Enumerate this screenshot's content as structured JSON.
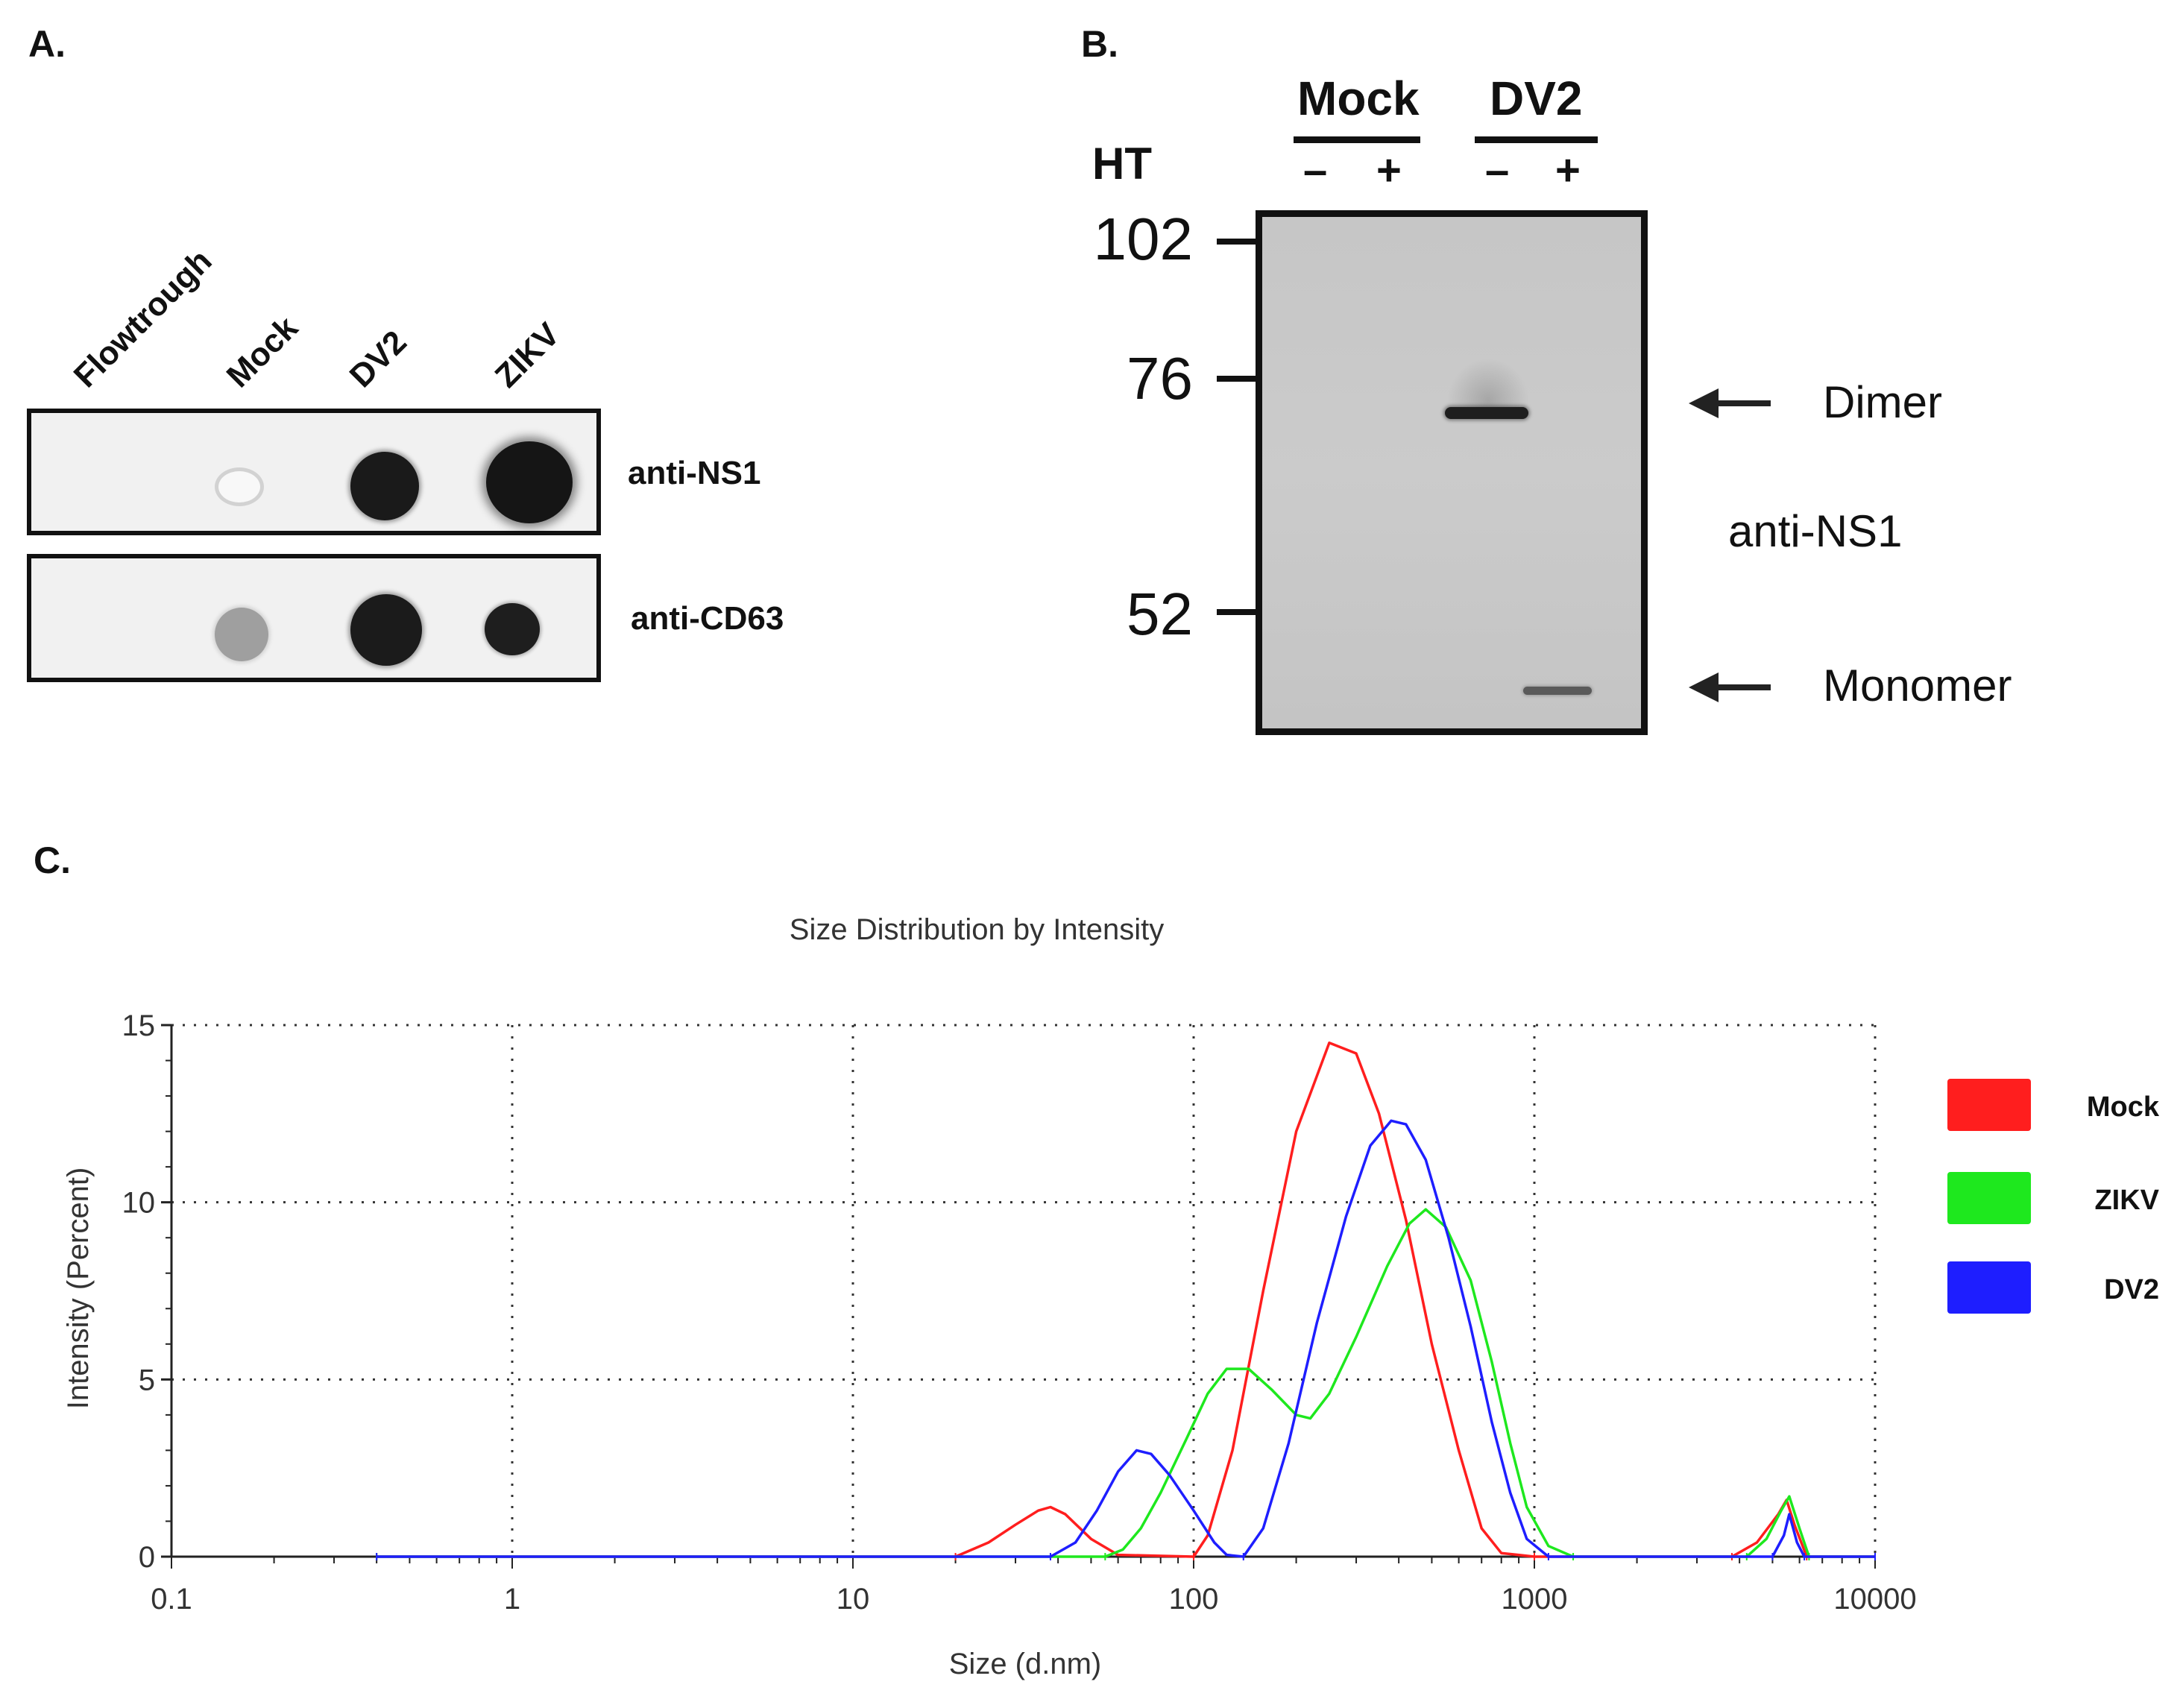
{
  "panel_a": {
    "label": "A.",
    "columns": [
      "Flowtrough",
      "Mock",
      "DV2",
      "ZIKV"
    ],
    "rows": [
      {
        "antibody": "anti-NS1"
      },
      {
        "antibody": "anti-CD63"
      }
    ]
  },
  "panel_b": {
    "label": "B.",
    "groups": [
      "Mock",
      "DV2"
    ],
    "ht_label": "HT",
    "lane_signs": [
      "–",
      "+",
      "–",
      "+"
    ],
    "markers": [
      "102",
      "76",
      "52"
    ],
    "antibody": "anti-NS1",
    "band_labels": [
      "Dimer",
      "Monomer"
    ]
  },
  "panel_c": {
    "label": "C."
  },
  "chart_data": {
    "type": "line",
    "title": "Size Distribution by Intensity",
    "xlabel": "Size (d.nm)",
    "ylabel": "Intensity (Percent)",
    "xscale": "log",
    "xlim": [
      0.1,
      10000
    ],
    "ylim": [
      0,
      15
    ],
    "xticks": [
      "0.1",
      "1",
      "10",
      "100",
      "1000",
      "10000"
    ],
    "yticks": [
      "0",
      "5",
      "10",
      "15"
    ],
    "grid": true,
    "legend_position": "right",
    "series": [
      {
        "name": "Mock",
        "color": "#ff1e1e",
        "points": [
          [
            0.4,
            0
          ],
          [
            20,
            0
          ],
          [
            25,
            0.4
          ],
          [
            30,
            0.9
          ],
          [
            35,
            1.3
          ],
          [
            38,
            1.4
          ],
          [
            42,
            1.2
          ],
          [
            50,
            0.5
          ],
          [
            60,
            0.05
          ],
          [
            100,
            0
          ],
          [
            110,
            0.6
          ],
          [
            130,
            3
          ],
          [
            160,
            7.5
          ],
          [
            200,
            12
          ],
          [
            250,
            14.5
          ],
          [
            300,
            14.2
          ],
          [
            350,
            12.5
          ],
          [
            420,
            9.5
          ],
          [
            500,
            6
          ],
          [
            600,
            3
          ],
          [
            700,
            0.8
          ],
          [
            800,
            0.1
          ],
          [
            1000,
            0
          ],
          [
            3800,
            0
          ],
          [
            4500,
            0.4
          ],
          [
            5200,
            1.2
          ],
          [
            5500,
            1.6
          ],
          [
            5800,
            0.9
          ],
          [
            6300,
            0
          ],
          [
            10000,
            0
          ]
        ]
      },
      {
        "name": "ZIKV",
        "color": "#1ee81e",
        "points": [
          [
            0.4,
            0
          ],
          [
            55,
            0
          ],
          [
            62,
            0.2
          ],
          [
            70,
            0.8
          ],
          [
            80,
            1.8
          ],
          [
            95,
            3.3
          ],
          [
            110,
            4.6
          ],
          [
            125,
            5.3
          ],
          [
            145,
            5.3
          ],
          [
            170,
            4.7
          ],
          [
            200,
            4
          ],
          [
            220,
            3.9
          ],
          [
            250,
            4.6
          ],
          [
            300,
            6.2
          ],
          [
            370,
            8.2
          ],
          [
            430,
            9.4
          ],
          [
            480,
            9.8
          ],
          [
            550,
            9.3
          ],
          [
            650,
            7.8
          ],
          [
            750,
            5.5
          ],
          [
            850,
            3.2
          ],
          [
            950,
            1.4
          ],
          [
            1100,
            0.3
          ],
          [
            1300,
            0
          ],
          [
            4200,
            0
          ],
          [
            4800,
            0.5
          ],
          [
            5300,
            1.3
          ],
          [
            5600,
            1.7
          ],
          [
            6000,
            0.8
          ],
          [
            6400,
            0
          ],
          [
            10000,
            0
          ]
        ]
      },
      {
        "name": "DV2",
        "color": "#1e1eff",
        "points": [
          [
            0.4,
            0
          ],
          [
            38,
            0
          ],
          [
            45,
            0.4
          ],
          [
            52,
            1.3
          ],
          [
            60,
            2.4
          ],
          [
            68,
            3
          ],
          [
            75,
            2.9
          ],
          [
            85,
            2.3
          ],
          [
            100,
            1.3
          ],
          [
            115,
            0.4
          ],
          [
            125,
            0.05
          ],
          [
            140,
            0
          ],
          [
            160,
            0.8
          ],
          [
            190,
            3.2
          ],
          [
            230,
            6.6
          ],
          [
            280,
            9.6
          ],
          [
            330,
            11.6
          ],
          [
            380,
            12.3
          ],
          [
            420,
            12.2
          ],
          [
            480,
            11.2
          ],
          [
            560,
            9
          ],
          [
            650,
            6.5
          ],
          [
            750,
            3.8
          ],
          [
            850,
            1.8
          ],
          [
            950,
            0.5
          ],
          [
            1100,
            0
          ],
          [
            5000,
            0
          ],
          [
            5400,
            0.6
          ],
          [
            5600,
            1.2
          ],
          [
            5900,
            0.4
          ],
          [
            6200,
            0
          ],
          [
            10000,
            0
          ]
        ]
      }
    ]
  }
}
